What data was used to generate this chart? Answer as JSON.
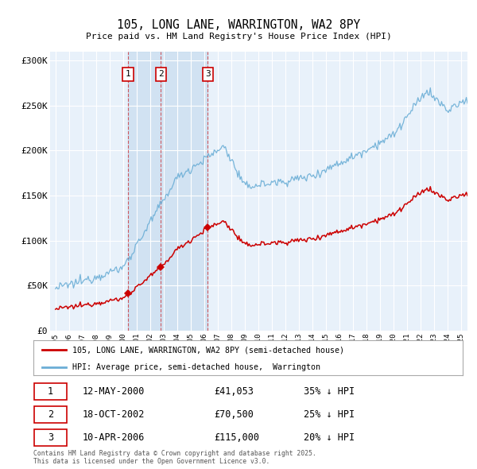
{
  "title": "105, LONG LANE, WARRINGTON, WA2 8PY",
  "subtitle": "Price paid vs. HM Land Registry's House Price Index (HPI)",
  "ylabel_ticks": [
    "£0",
    "£50K",
    "£100K",
    "£150K",
    "£200K",
    "£250K",
    "£300K"
  ],
  "ytick_values": [
    0,
    50000,
    100000,
    150000,
    200000,
    250000,
    300000
  ],
  "ylim": [
    0,
    310000
  ],
  "legend_line1": "105, LONG LANE, WARRINGTON, WA2 8PY (semi-detached house)",
  "legend_line2": "HPI: Average price, semi-detached house,  Warrington",
  "transactions": [
    {
      "num": 1,
      "date": "12-MAY-2000",
      "price": "£41,053",
      "pct": "35% ↓ HPI",
      "year": 2000.37
    },
    {
      "num": 2,
      "date": "18-OCT-2002",
      "price": "£70,500",
      "pct": "25% ↓ HPI",
      "year": 2002.8
    },
    {
      "num": 3,
      "date": "10-APR-2006",
      "price": "£115,000",
      "pct": "20% ↓ HPI",
      "year": 2006.28
    }
  ],
  "transaction_values": [
    41053,
    70500,
    115000
  ],
  "footer": "Contains HM Land Registry data © Crown copyright and database right 2025.\nThis data is licensed under the Open Government Licence v3.0.",
  "hpi_color": "#6baed6",
  "sold_color": "#cc0000",
  "bg_color": "#ffffff",
  "plot_bg_color": "#dce9f5",
  "shade_color": "#dce9f5"
}
